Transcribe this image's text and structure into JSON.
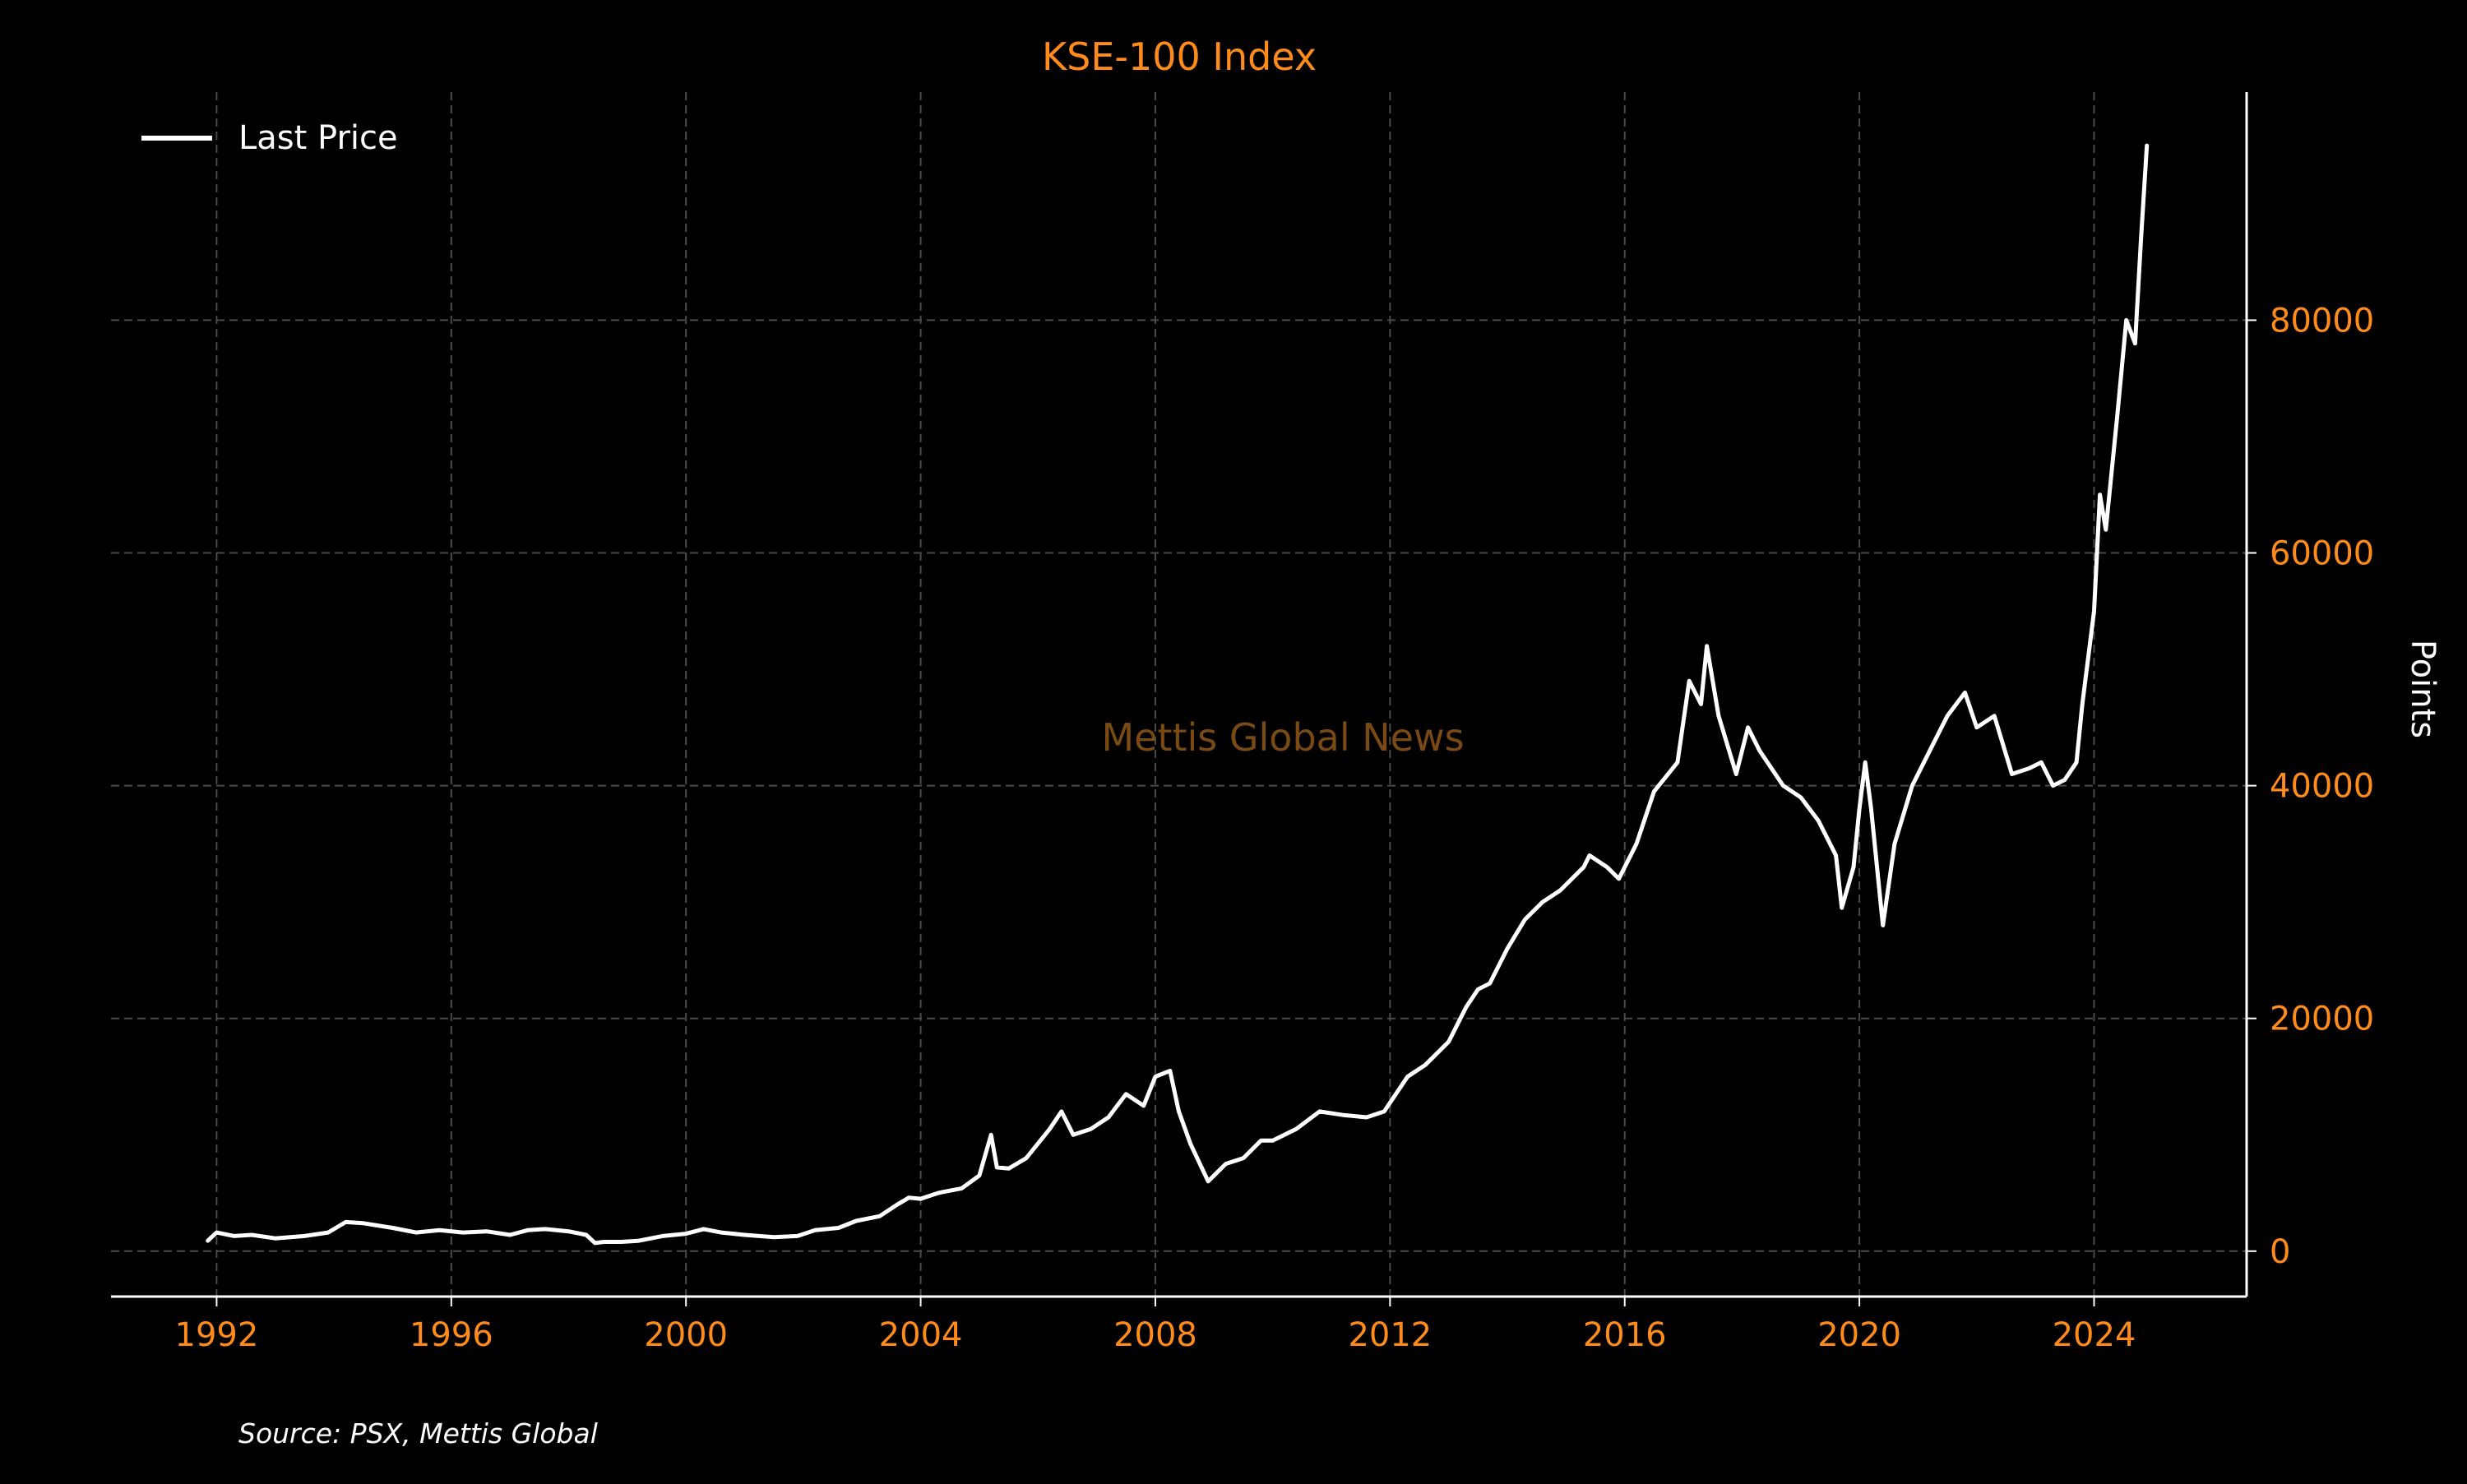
{
  "colors": {
    "background": "#000000",
    "accent": "#FF8C1A",
    "line": "#FFFFFF",
    "grid": "#4a4a4a",
    "watermark": "#7a4a14"
  },
  "chart_data": {
    "type": "line",
    "title": "KSE-100 Index",
    "xlabel": "",
    "ylabel": "Points",
    "xlim": [
      1990.2,
      2026.6
    ],
    "ylim": [
      -3900,
      99600
    ],
    "x_ticks": [
      "1992",
      "1996",
      "2000",
      "2004",
      "2008",
      "2012",
      "2016",
      "2020",
      "2024"
    ],
    "y_ticks": [
      "0",
      "20000",
      "40000",
      "60000",
      "80000"
    ],
    "grid": true,
    "legend_position": "top-left",
    "y_axis_side": "right",
    "series": [
      {
        "name": "Last Price",
        "x": [
          1991.85,
          1992.0,
          1992.3,
          1992.6,
          1993.0,
          1993.5,
          1993.9,
          1994.2,
          1994.5,
          1995.0,
          1995.4,
          1995.8,
          1996.2,
          1996.6,
          1997.0,
          1997.3,
          1997.6,
          1998.0,
          1998.3,
          1998.45,
          1998.6,
          1998.9,
          1999.2,
          1999.6,
          2000.0,
          2000.3,
          2000.6,
          2001.0,
          2001.5,
          2001.9,
          2002.2,
          2002.6,
          2002.9,
          2003.3,
          2003.6,
          2003.8,
          2004.0,
          2004.3,
          2004.7,
          2005.0,
          2005.2,
          2005.3,
          2005.5,
          2005.8,
          2006.2,
          2006.4,
          2006.6,
          2006.9,
          2007.2,
          2007.5,
          2007.8,
          2008.0,
          2008.25,
          2008.4,
          2008.6,
          2008.9,
          2009.0,
          2009.2,
          2009.5,
          2009.8,
          2010.0,
          2010.4,
          2010.8,
          2011.2,
          2011.6,
          2011.9,
          2012.3,
          2012.6,
          2013.0,
          2013.3,
          2013.5,
          2013.7,
          2014.0,
          2014.3,
          2014.6,
          2014.9,
          2015.3,
          2015.4,
          2015.7,
          2015.9,
          2016.2,
          2016.5,
          2016.9,
          2017.1,
          2017.3,
          2017.4,
          2017.6,
          2017.9,
          2018.1,
          2018.3,
          2018.7,
          2019.0,
          2019.3,
          2019.6,
          2019.7,
          2019.9,
          2020.0,
          2020.1,
          2020.2,
          2020.4,
          2020.6,
          2020.9,
          2021.2,
          2021.5,
          2021.8,
          2022.0,
          2022.3,
          2022.6,
          2022.9,
          2023.1,
          2023.3,
          2023.5,
          2023.7,
          2023.8,
          2024.0,
          2024.1,
          2024.2,
          2024.4,
          2024.55,
          2024.7,
          2024.8,
          2024.9
        ],
        "y": [
          900,
          1600,
          1300,
          1400,
          1100,
          1300,
          1600,
          2500,
          2400,
          2000,
          1600,
          1800,
          1600,
          1700,
          1400,
          1800,
          1900,
          1700,
          1400,
          700,
          800,
          800,
          900,
          1300,
          1500,
          1900,
          1600,
          1400,
          1200,
          1300,
          1800,
          2000,
          2600,
          3000,
          4000,
          4600,
          4500,
          5000,
          5400,
          6500,
          10000,
          7200,
          7100,
          8000,
          10500,
          12000,
          10000,
          10500,
          11500,
          13500,
          12500,
          15000,
          15500,
          12000,
          9200,
          6000,
          6500,
          7500,
          8000,
          9500,
          9500,
          10500,
          12000,
          11700,
          11500,
          12000,
          15000,
          16000,
          18000,
          21000,
          22500,
          23000,
          26000,
          28500,
          30000,
          31000,
          33000,
          34000,
          33000,
          32000,
          35000,
          39500,
          42000,
          49000,
          47000,
          52000,
          46000,
          41000,
          45000,
          43000,
          40000,
          39000,
          37000,
          34000,
          29500,
          33000,
          38000,
          42000,
          38000,
          28000,
          35000,
          40000,
          43000,
          46000,
          48000,
          45000,
          46000,
          41000,
          41500,
          42000,
          40000,
          40500,
          42000,
          47000,
          55000,
          65000,
          62000,
          72000,
          80000,
          78000,
          87000,
          95000
        ]
      }
    ],
    "watermark": "Mettis Global News",
    "source": "Source: PSX, Mettis Global"
  }
}
